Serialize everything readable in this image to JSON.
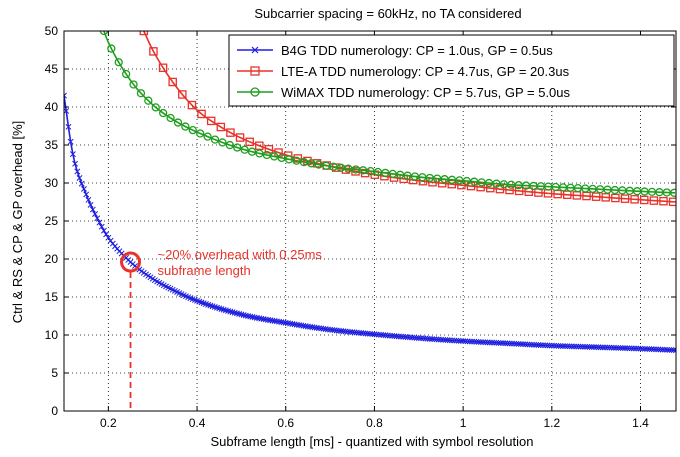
{
  "chart_data": {
    "type": "line",
    "title": "Subcarrier spacing = 60kHz, no TA considered",
    "xlabel": "Subframe length [ms] - quantized with symbol resolution",
    "ylabel": "Ctrl & RS & CP & GP overhead [%]",
    "xlim": [
      0.1,
      1.48
    ],
    "ylim": [
      0,
      50
    ],
    "xticks": [
      0.2,
      0.4,
      0.6,
      0.8,
      1,
      1.2,
      1.4
    ],
    "yticks": [
      0,
      5,
      10,
      15,
      20,
      25,
      30,
      35,
      40,
      45,
      50
    ],
    "grid": true,
    "legend_position": "top-right",
    "series": [
      {
        "name": "B4G TDD numerology: CP = 1.0us, GP = 0.5us",
        "color": "#1f1fe0",
        "marker": "x",
        "x": [
          0.1,
          0.12,
          0.15,
          0.18,
          0.2,
          0.25,
          0.3,
          0.35,
          0.4,
          0.5,
          0.6,
          0.7,
          0.8,
          0.9,
          1.0,
          1.1,
          1.2,
          1.3,
          1.4,
          1.48
        ],
        "values": [
          41.5,
          33.8,
          28.5,
          24.8,
          22.8,
          19.6,
          17.4,
          15.8,
          14.5,
          12.7,
          11.6,
          10.7,
          10.1,
          9.6,
          9.2,
          8.9,
          8.6,
          8.4,
          8.2,
          8.0
        ]
      },
      {
        "name": "LTE-A TDD numerology: CP = 4.7us, GP = 20.3us",
        "color": "#e8322a",
        "marker": "square",
        "x": [
          0.28,
          0.3,
          0.35,
          0.4,
          0.45,
          0.5,
          0.6,
          0.7,
          0.8,
          0.9,
          1.0,
          1.1,
          1.2,
          1.3,
          1.4,
          1.48
        ],
        "values": [
          50.0,
          47.5,
          42.9,
          39.6,
          37.5,
          35.9,
          33.7,
          32.2,
          31.1,
          30.3,
          29.7,
          29.1,
          28.6,
          28.2,
          27.8,
          27.5
        ]
      },
      {
        "name": "WiMAX TDD numerology: CP = 5.7us, GP = 5.0us",
        "color": "#1e9e1e",
        "marker": "circle",
        "x": [
          0.19,
          0.2,
          0.25,
          0.3,
          0.35,
          0.4,
          0.5,
          0.6,
          0.7,
          0.8,
          0.9,
          1.0,
          1.1,
          1.2,
          1.3,
          1.4,
          1.48
        ],
        "values": [
          50.0,
          48.5,
          43.5,
          40.3,
          38.2,
          36.7,
          34.5,
          33.2,
          32.2,
          31.5,
          30.8,
          30.3,
          29.8,
          29.5,
          29.2,
          28.9,
          28.7
        ]
      }
    ],
    "annotations": [
      {
        "text_line1": "~20% overhead with 0.25ms",
        "text_line2": "subframe length",
        "x": 0.25,
        "y": 19.6
      }
    ]
  }
}
